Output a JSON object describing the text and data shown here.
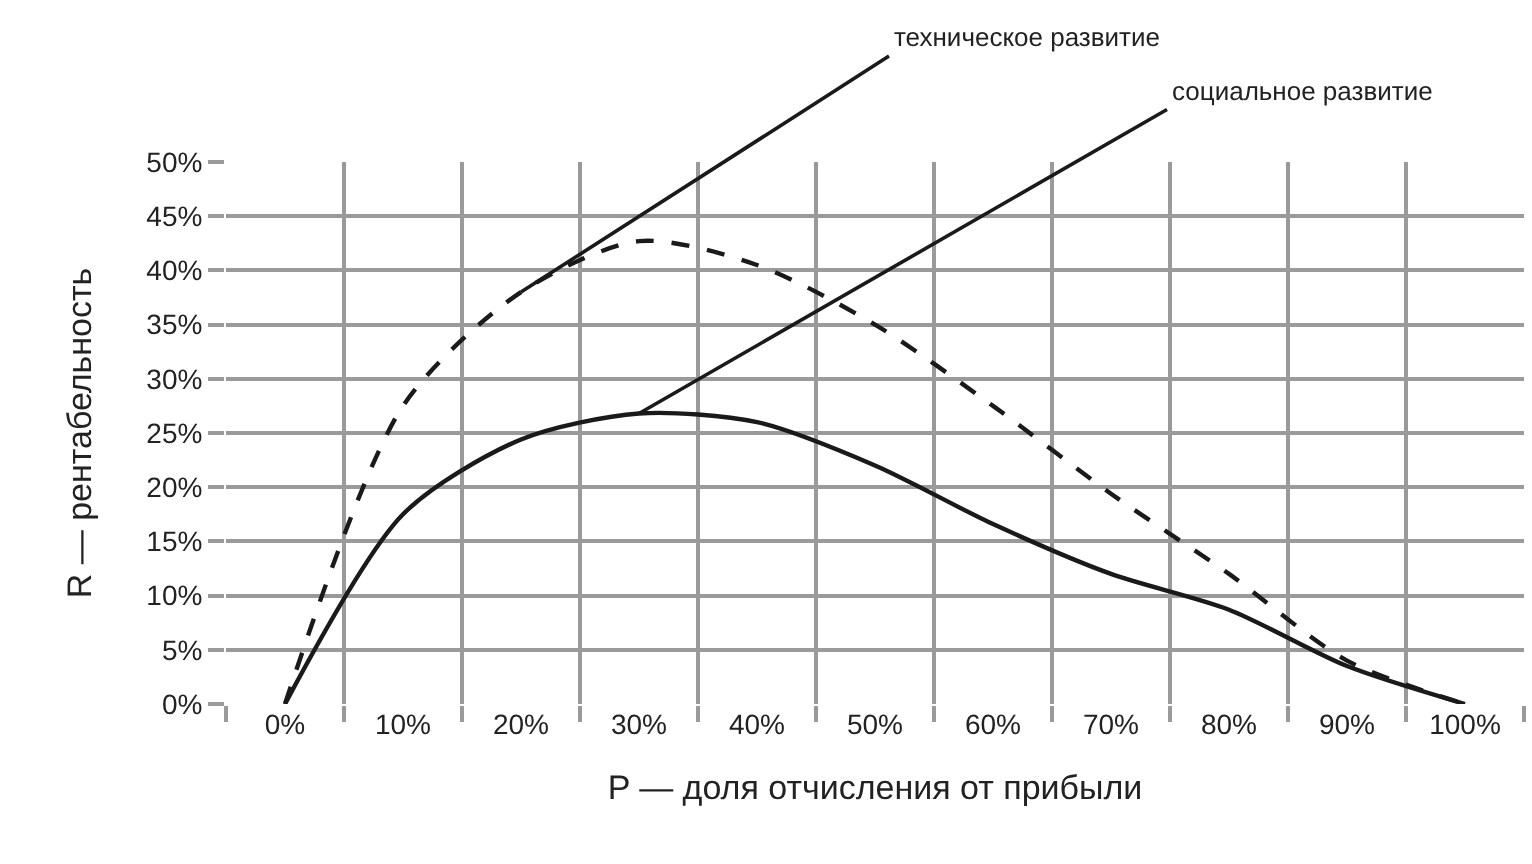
{
  "chart_data": {
    "type": "line",
    "categories": [
      "0%",
      "10%",
      "20%",
      "30%",
      "40%",
      "50%",
      "60%",
      "70%",
      "80%",
      "90%",
      "100%"
    ],
    "series": [
      {
        "color": "#1a1a1a",
        "line_style": "dashed",
        "values": [
          0,
          27.5,
          38,
          42.7,
          40.5,
          35,
          27.5,
          19.4,
          12,
          4,
          0
        ]
      },
      {
        "color": "#1a1a1a",
        "line_style": "solid",
        "values": [
          0,
          17.5,
          24.4,
          26.8,
          26,
          22,
          16.6,
          12,
          8.7,
          3.5,
          0
        ]
      }
    ],
    "ylim": [
      0,
      50
    ],
    "yticks": [
      {
        "value": 0,
        "label": "0%"
      },
      {
        "value": 5,
        "label": "5%"
      },
      {
        "value": 10,
        "label": "10%"
      },
      {
        "value": 15,
        "label": "15%"
      },
      {
        "value": 20,
        "label": "20%"
      },
      {
        "value": 25,
        "label": "25%"
      },
      {
        "value": 30,
        "label": "30%"
      },
      {
        "value": 35,
        "label": "35%"
      },
      {
        "value": 40,
        "label": "40%"
      },
      {
        "value": 45,
        "label": "45%"
      },
      {
        "value": 50,
        "label": "50%"
      }
    ],
    "xlabel": "P — доля отчисления от прибыли",
    "ylabel": "R — рентабельность",
    "annotations": [
      {
        "text": "техническое развитие",
        "x": "20%",
        "y": 38
      },
      {
        "text": "социальное развитие",
        "x": "30%",
        "y": 26.8
      }
    ],
    "grid": true,
    "marker": "none"
  }
}
